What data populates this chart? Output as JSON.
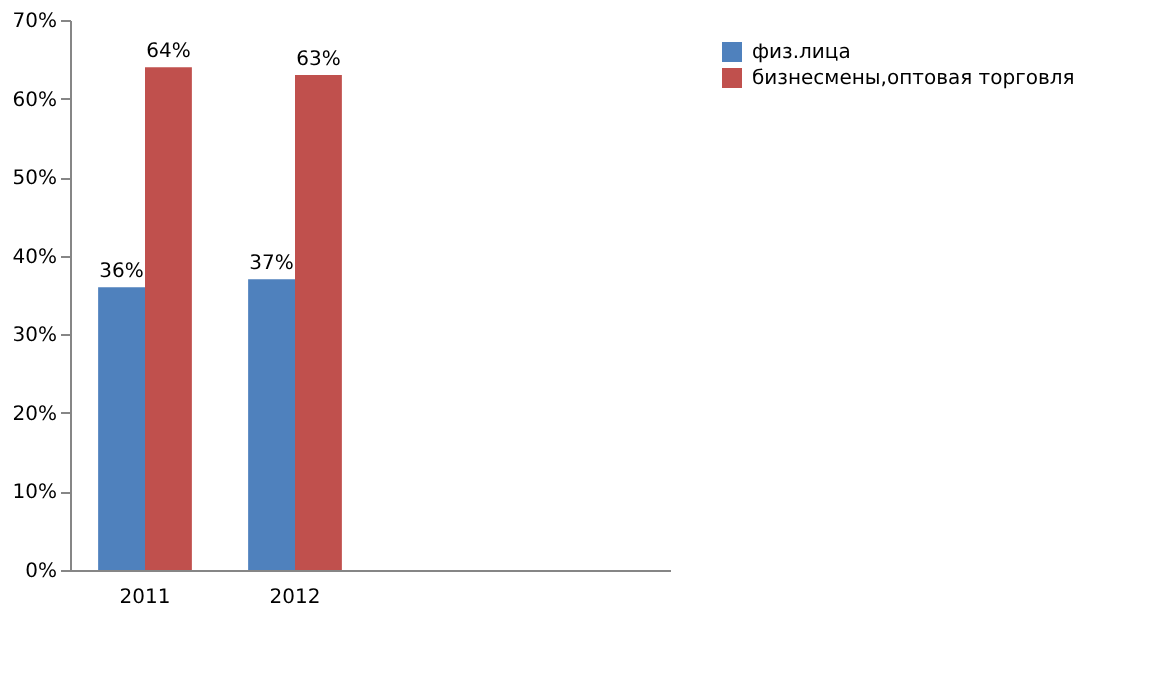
{
  "chart_data": {
    "type": "bar",
    "categories": [
      "2011",
      "2012",
      null,
      null
    ],
    "series": [
      {
        "name": "физ.лица",
        "color": "#4f81bd",
        "values": [
          36,
          37,
          null,
          null
        ],
        "value_labels": [
          "36%",
          "37%",
          null,
          null
        ]
      },
      {
        "name": "бизнесмены,оптовая торговля",
        "color": "#c0504d",
        "values": [
          64,
          63,
          null,
          null
        ],
        "value_labels": [
          "64%",
          "63%",
          null,
          null
        ]
      }
    ],
    "ylim": [
      0,
      70
    ],
    "yticks": [
      {
        "value": 0,
        "label": "0%"
      },
      {
        "value": 10,
        "label": "10%"
      },
      {
        "value": 20,
        "label": "20%"
      },
      {
        "value": 30,
        "label": "30%"
      },
      {
        "value": 40,
        "label": "40%"
      },
      {
        "value": 50,
        "label": "50%"
      },
      {
        "value": 60,
        "label": "60%"
      },
      {
        "value": 70,
        "label": "70%"
      }
    ],
    "grid": false,
    "legend": "right"
  }
}
